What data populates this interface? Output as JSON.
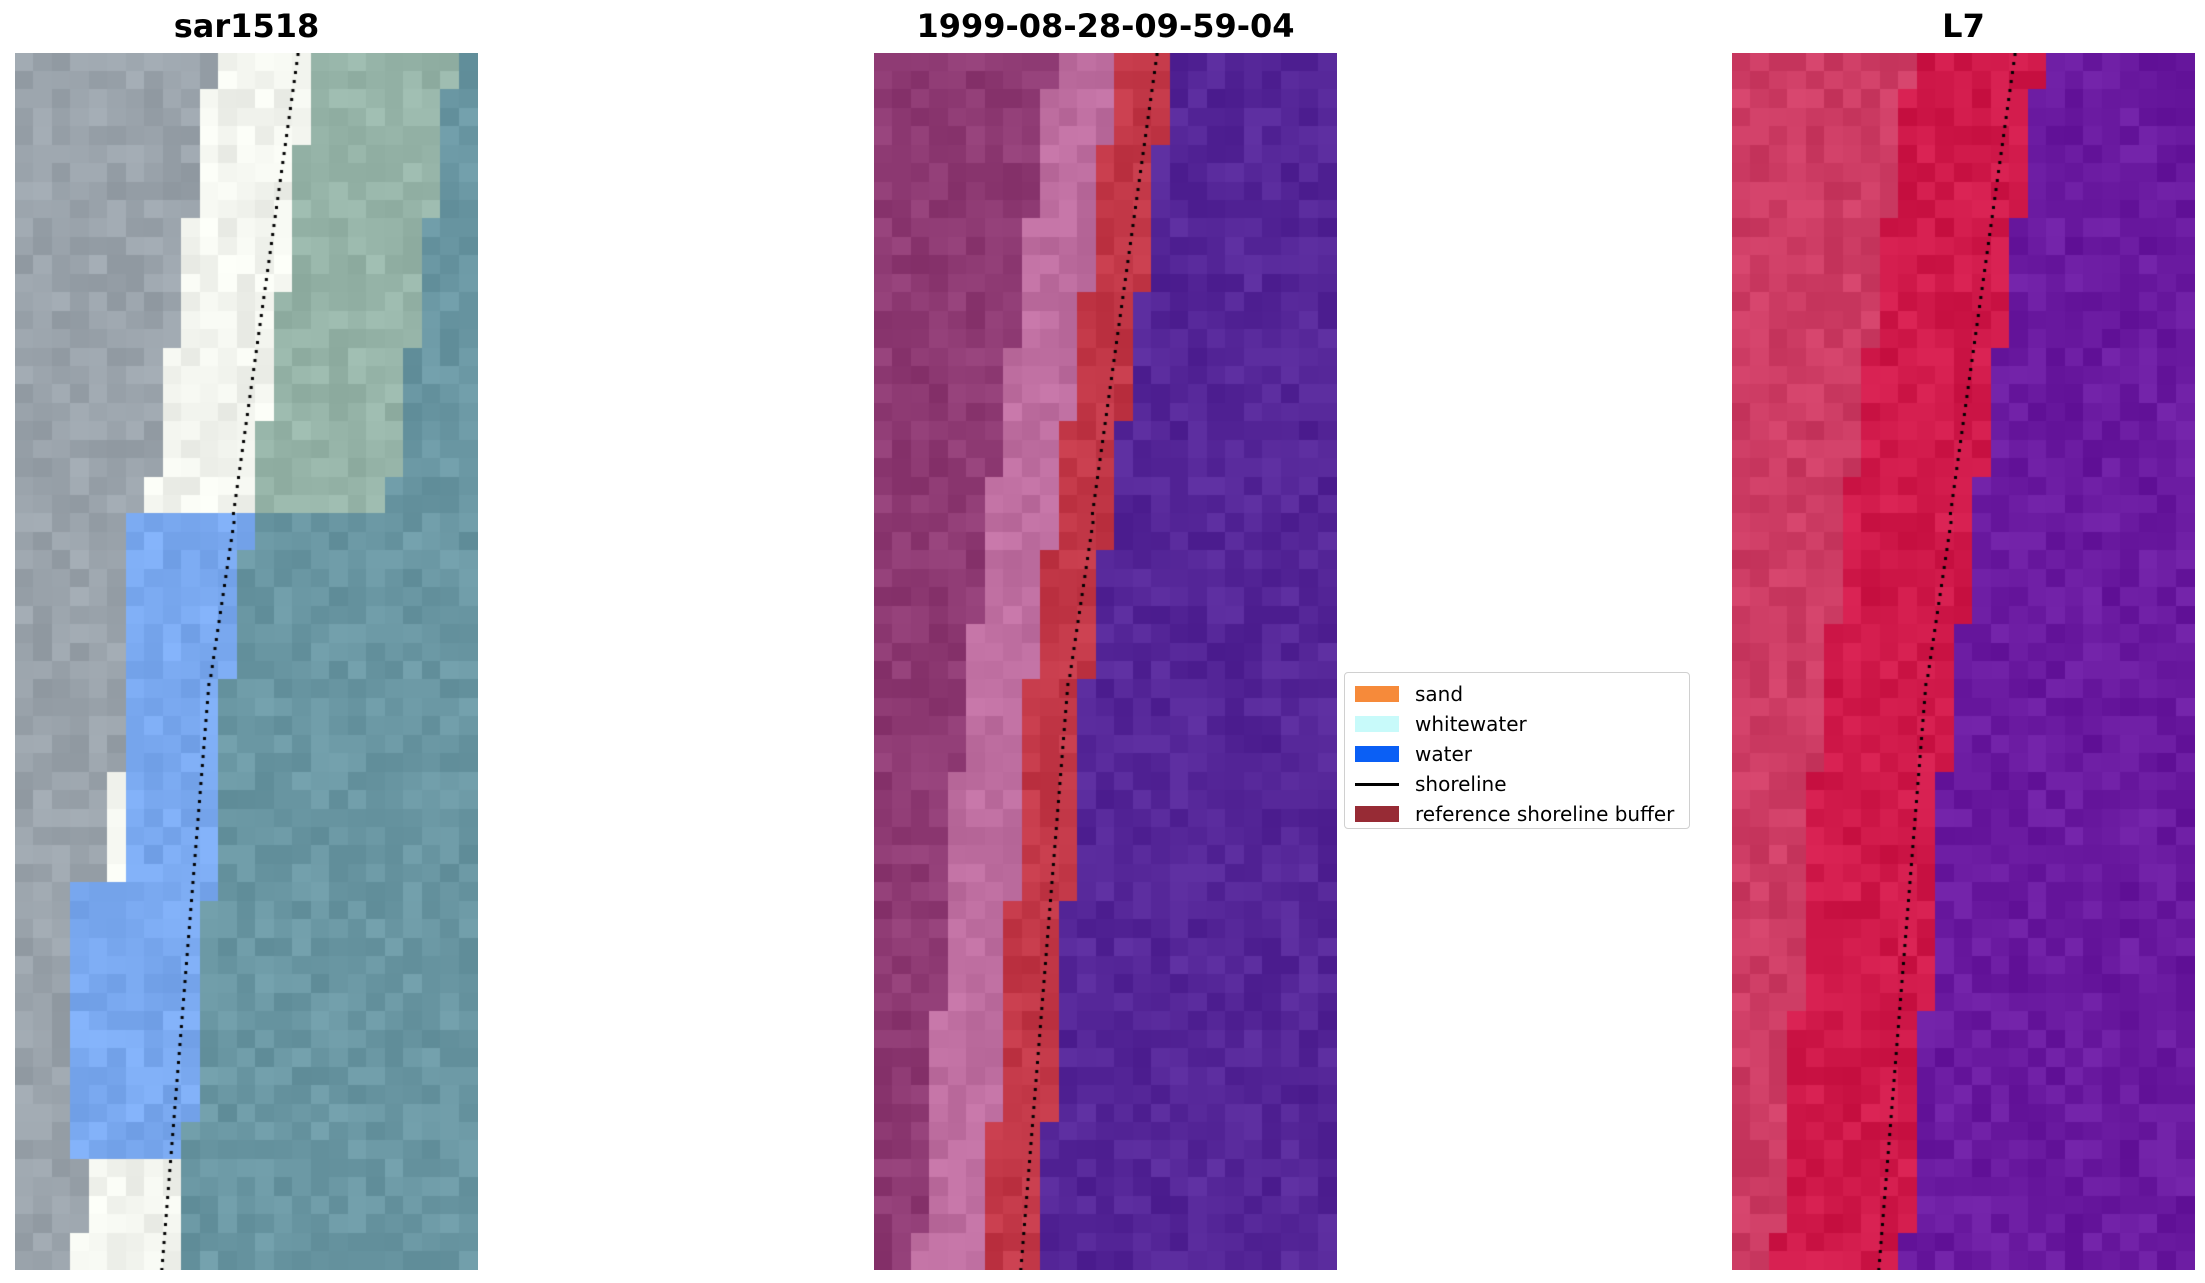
{
  "panels": [
    {
      "id": "rgb",
      "title": "sar1518",
      "style": "rgb"
    },
    {
      "id": "classified",
      "title": "1999-08-28-09-59-04",
      "style": "classified"
    },
    {
      "id": "index",
      "title": "L7",
      "style": "index"
    }
  ],
  "legend": {
    "items": [
      {
        "label": "sand",
        "color": "#f68a3a",
        "kind": "patch"
      },
      {
        "label": "whitewater",
        "color": "#c8fafa",
        "kind": "patch"
      },
      {
        "label": "water",
        "color": "#0a5ff5",
        "kind": "patch"
      },
      {
        "label": "shoreline",
        "color": "#000000",
        "kind": "line"
      },
      {
        "label": "reference shoreline buffer",
        "color": "#972b35",
        "kind": "patch"
      }
    ]
  },
  "colors": {
    "ocean": "#6a97a3",
    "land": "#9aa3ab",
    "beach_white": "#f2f4ee",
    "lagoon_blue": "#7aa9f0",
    "water_purple": "#552698",
    "land_mauve": "#8e3a73",
    "buffer_red": "#c23747",
    "index_red": "#d0194a",
    "index_purple": "#6a1aa0"
  }
}
